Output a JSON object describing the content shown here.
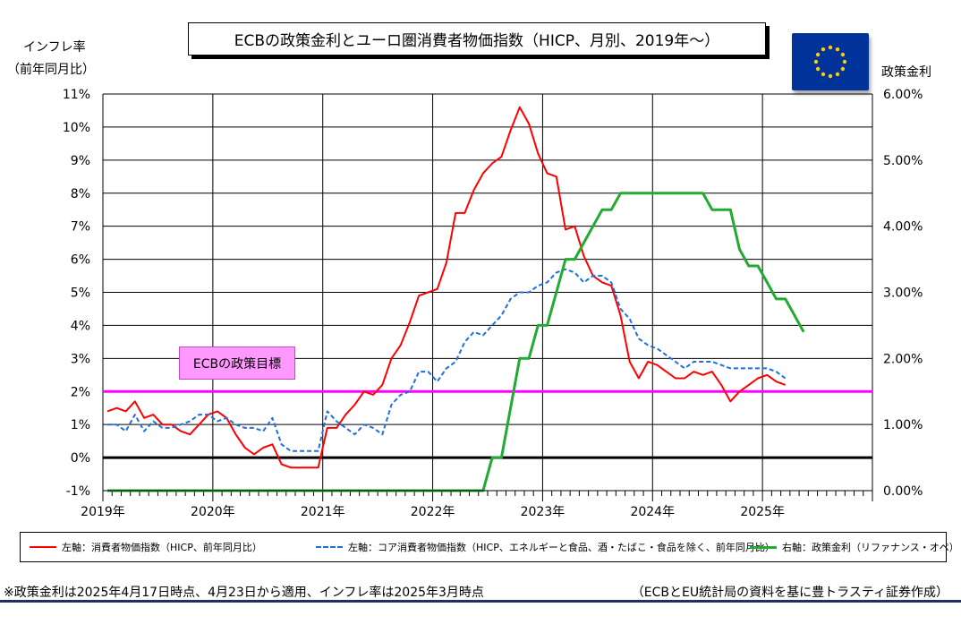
{
  "title": "ECBの政策金利とユーロ圏消費者物価指数（HICP、月別、2019年～）",
  "left_axis_title_line1": "インフレ率",
  "left_axis_title_line2": "（前年同月比）",
  "right_axis_title": "政策金利",
  "target_label": "ECBの政策目標",
  "footnote_left": "※政策金利は2025年4月17日時点、4月23日から適用、インフレ率は2025年3月時点",
  "footnote_right": "（ECBとEU統計局の資料を基に豊トラスティ証券作成）",
  "flag_icon": "eu-flag-icon",
  "colors": {
    "hicp": "#ff0000",
    "core": "#1f6fe0",
    "rate": "#22aa33",
    "target": "#ff00ff",
    "zero": "#000000",
    "grid": "#000000"
  },
  "chart_data": {
    "type": "line",
    "x_start": "2019-01",
    "x_end": "2025-12",
    "x_tick_labels": [
      "2019年",
      "2020年",
      "2021年",
      "2022年",
      "2023年",
      "2024年",
      "2025年"
    ],
    "y_left": {
      "min": -1,
      "max": 11,
      "tick_labels": [
        "-1%",
        "0%",
        "1%",
        "2%",
        "3%",
        "4%",
        "5%",
        "6%",
        "7%",
        "8%",
        "9%",
        "10%",
        "11%"
      ]
    },
    "y_right": {
      "min": 0,
      "max": 6,
      "tick_labels": [
        "0.00%",
        "1.00%",
        "2.00%",
        "3.00%",
        "4.00%",
        "5.00%",
        "6.00%"
      ]
    },
    "grid": "horizontal",
    "legend_placement": "bottom",
    "target_line": 2.0,
    "series": [
      {
        "name": "左軸：消費者物価指数（HICP、前年同月比）",
        "axis": "left",
        "values": [
          1.4,
          1.5,
          1.4,
          1.7,
          1.2,
          1.3,
          1.0,
          1.0,
          0.8,
          0.7,
          1.0,
          1.3,
          1.4,
          1.2,
          0.7,
          0.3,
          0.1,
          0.3,
          0.4,
          -0.2,
          -0.3,
          -0.3,
          -0.3,
          -0.3,
          0.9,
          0.9,
          1.3,
          1.6,
          2.0,
          1.9,
          2.2,
          3.0,
          3.4,
          4.1,
          4.9,
          5.0,
          5.1,
          5.9,
          7.4,
          7.4,
          8.1,
          8.6,
          8.9,
          9.1,
          9.9,
          10.6,
          10.1,
          9.2,
          8.6,
          8.5,
          6.9,
          7.0,
          6.1,
          5.5,
          5.3,
          5.2,
          4.3,
          2.9,
          2.4,
          2.9,
          2.8,
          2.6,
          2.4,
          2.4,
          2.6,
          2.5,
          2.6,
          2.2,
          1.7,
          2.0,
          2.2,
          2.4,
          2.5,
          2.3,
          2.2
        ]
      },
      {
        "name": "左軸：コア消費者物価指数（HICP、エネルギーと食品、酒・たばこ・食品を除く、前年同月比）",
        "axis": "left",
        "values": [
          1.0,
          1.0,
          0.8,
          1.3,
          0.8,
          1.1,
          0.9,
          0.9,
          1.0,
          1.1,
          1.3,
          1.3,
          1.1,
          1.2,
          1.0,
          0.9,
          0.9,
          0.8,
          1.2,
          0.4,
          0.2,
          0.2,
          0.2,
          0.2,
          1.4,
          1.1,
          0.9,
          0.7,
          1.0,
          0.9,
          0.7,
          1.6,
          1.9,
          2.0,
          2.6,
          2.6,
          2.3,
          2.7,
          2.9,
          3.5,
          3.8,
          3.7,
          4.0,
          4.3,
          4.8,
          5.0,
          5.0,
          5.2,
          5.3,
          5.6,
          5.7,
          5.6,
          5.3,
          5.5,
          5.5,
          5.3,
          4.5,
          4.2,
          3.6,
          3.4,
          3.3,
          3.1,
          2.9,
          2.7,
          2.9,
          2.9,
          2.9,
          2.8,
          2.7,
          2.7,
          2.7,
          2.7,
          2.7,
          2.6,
          2.4
        ]
      },
      {
        "name": "右軸：政策金利（リファナンス・オペ）",
        "axis": "right",
        "values": [
          0.0,
          0.0,
          0.0,
          0.0,
          0.0,
          0.0,
          0.0,
          0.0,
          0.0,
          0.0,
          0.0,
          0.0,
          0.0,
          0.0,
          0.0,
          0.0,
          0.0,
          0.0,
          0.0,
          0.0,
          0.0,
          0.0,
          0.0,
          0.0,
          0.0,
          0.0,
          0.0,
          0.0,
          0.0,
          0.0,
          0.0,
          0.0,
          0.0,
          0.0,
          0.0,
          0.0,
          0.0,
          0.0,
          0.0,
          0.0,
          0.0,
          0.0,
          0.5,
          0.5,
          1.25,
          2.0,
          2.0,
          2.5,
          2.5,
          3.0,
          3.5,
          3.5,
          3.75,
          4.0,
          4.25,
          4.25,
          4.5,
          4.5,
          4.5,
          4.5,
          4.5,
          4.5,
          4.5,
          4.5,
          4.5,
          4.5,
          4.25,
          4.25,
          4.25,
          3.65,
          3.4,
          3.4,
          3.15,
          2.9,
          2.9,
          2.65,
          2.4
        ]
      }
    ]
  }
}
